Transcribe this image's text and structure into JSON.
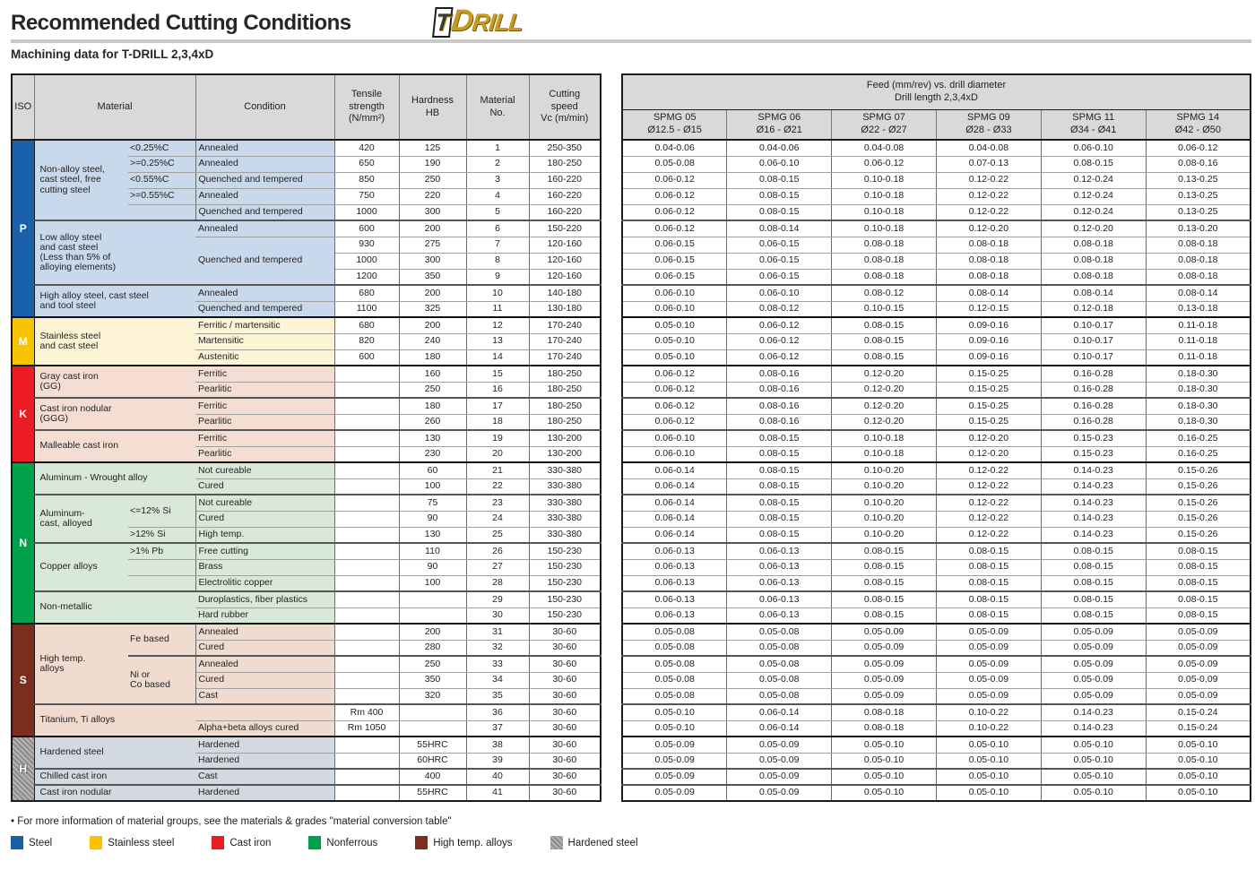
{
  "page": {
    "title": "Recommended Cutting Conditions",
    "subtitle": "Machining data for T-DRILL 2,3,4xD",
    "logo": {
      "t": "T",
      "d": "D",
      "rill": "RILL"
    }
  },
  "left_table": {
    "headers": {
      "iso": "ISO",
      "material": "Material",
      "condition": "Condition",
      "tensile": "Tensile\nstrength\n(N/mm²)",
      "hardness": "Hardness\nHB",
      "mat_no": "Material\nNo.",
      "speed": "Cutting\nspeed\nVc (m/min)"
    },
    "rows": [
      {
        "iso": {
          "label": "P",
          "rows": 11,
          "bg": "#1a5fa9",
          "fg": "#ffffff"
        },
        "mat": {
          "label": "Non-alloy steel,\ncast steel, free\ncutting steel",
          "rows": 5
        },
        "sub": {
          "label": "<0.25%C"
        },
        "cond": "Annealed",
        "ts": "420",
        "hb": "125",
        "no": "1",
        "vc": "250-350",
        "band": "#c9d9ec"
      },
      {
        "sub": {
          "label": ">=0.25%C"
        },
        "cond": "Annealed",
        "ts": "650",
        "hb": "190",
        "no": "2",
        "vc": "180-250",
        "band": "#c9d9ec"
      },
      {
        "sub": {
          "label": "<0.55%C"
        },
        "cond": "Quenched and tempered",
        "ts": "850",
        "hb": "250",
        "no": "3",
        "vc": "160-220",
        "band": "#c9d9ec"
      },
      {
        "sub": {
          "label": ">=0.55%C"
        },
        "cond": "Annealed",
        "ts": "750",
        "hb": "220",
        "no": "4",
        "vc": "160-220",
        "band": "#c9d9ec"
      },
      {
        "sub": {
          "label": ""
        },
        "cond": "Quenched and tempered",
        "ts": "1000",
        "hb": "300",
        "no": "5",
        "vc": "160-220",
        "band": "#c9d9ec",
        "sep": "group"
      },
      {
        "mat": {
          "label": "Low alloy steel\nand cast steel\n(Less than 5% of\nalloying elements)",
          "rows": 4,
          "cols": 2
        },
        "cond": "Annealed",
        "ts": "600",
        "hb": "200",
        "no": "6",
        "vc": "150-220",
        "band": "#c9d9ec"
      },
      {
        "cond": "Quenched and tempered",
        "condRows": 3,
        "ts": "930",
        "hb": "275",
        "no": "7",
        "vc": "120-160",
        "band": "#c9d9ec"
      },
      {
        "ts": "1000",
        "hb": "300",
        "no": "8",
        "vc": "120-160",
        "band": "#c9d9ec"
      },
      {
        "ts": "1200",
        "hb": "350",
        "no": "9",
        "vc": "120-160",
        "band": "#c9d9ec",
        "sep": "group"
      },
      {
        "mat": {
          "label": "High alloy steel, cast steel\nand tool steel",
          "rows": 2,
          "cols": 2
        },
        "cond": "Annealed",
        "ts": "680",
        "hb": "200",
        "no": "10",
        "vc": "140-180",
        "band": "#c9d9ec"
      },
      {
        "cond": "Quenched and tempered",
        "ts": "1100",
        "hb": "325",
        "no": "11",
        "vc": "130-180",
        "band": "#c9d9ec",
        "sep": "section"
      },
      {
        "iso": {
          "label": "M",
          "rows": 3,
          "bg": "#f8c300",
          "fg": "#ffffff"
        },
        "mat": {
          "label": "Stainless steel\nand cast steel",
          "rows": 3,
          "cols": 2
        },
        "cond": "Ferritic / martensitic",
        "ts": "680",
        "hb": "200",
        "no": "12",
        "vc": "170-240",
        "band": "#fdf3d5"
      },
      {
        "cond": "Martensitic",
        "ts": "820",
        "hb": "240",
        "no": "13",
        "vc": "170-240",
        "band": "#fdf3d5"
      },
      {
        "cond": "Austenitic",
        "ts": "600",
        "hb": "180",
        "no": "14",
        "vc": "170-240",
        "band": "#fdf3d5",
        "sep": "section"
      },
      {
        "iso": {
          "label": "K",
          "rows": 6,
          "bg": "#ed1c24",
          "fg": "#ffffff"
        },
        "mat": {
          "label": "Gray cast iron\n(GG)",
          "rows": 2,
          "cols": 2
        },
        "cond": "Ferritic",
        "ts": "",
        "hb": "160",
        "no": "15",
        "vc": "180-250",
        "band": "#f4ded1"
      },
      {
        "cond": "Pearlitic",
        "ts": "",
        "hb": "250",
        "no": "16",
        "vc": "180-250",
        "band": "#f4ded1",
        "sep": "group"
      },
      {
        "mat": {
          "label": "Cast iron nodular\n(GGG)",
          "rows": 2,
          "cols": 2
        },
        "cond": "Ferritic",
        "ts": "",
        "hb": "180",
        "no": "17",
        "vc": "180-250",
        "band": "#f4ded1"
      },
      {
        "cond": "Pearlitic",
        "ts": "",
        "hb": "260",
        "no": "18",
        "vc": "180-250",
        "band": "#f4ded1",
        "sep": "group"
      },
      {
        "mat": {
          "label": "Malleable cast iron",
          "rows": 2,
          "cols": 2
        },
        "cond": "Ferritic",
        "ts": "",
        "hb": "130",
        "no": "19",
        "vc": "130-200",
        "band": "#f4ded1"
      },
      {
        "cond": "Pearlitic",
        "ts": "",
        "hb": "230",
        "no": "20",
        "vc": "130-200",
        "band": "#f4ded1",
        "sep": "section"
      },
      {
        "iso": {
          "label": "N",
          "rows": 10,
          "bg": "#00a14b",
          "fg": "#ffffff"
        },
        "mat": {
          "label": "Aluminum - Wrought alloy",
          "rows": 2,
          "cols": 2
        },
        "cond": "Not cureable",
        "ts": "",
        "hb": "60",
        "no": "21",
        "vc": "330-380",
        "band": "#d9e9d8"
      },
      {
        "cond": "Cured",
        "ts": "",
        "hb": "100",
        "no": "22",
        "vc": "330-380",
        "band": "#d9e9d8",
        "sep": "group"
      },
      {
        "mat": {
          "label": "Aluminum-\ncast, alloyed",
          "rows": 3
        },
        "sub": {
          "label": "<=12% Si",
          "rows": 2
        },
        "cond": "Not cureable",
        "ts": "",
        "hb": "75",
        "no": "23",
        "vc": "330-380",
        "band": "#d9e9d8"
      },
      {
        "cond": "Cured",
        "ts": "",
        "hb": "90",
        "no": "24",
        "vc": "330-380",
        "band": "#d9e9d8"
      },
      {
        "sub": {
          "label": ">12% Si"
        },
        "cond": "High temp.",
        "ts": "",
        "hb": "130",
        "no": "25",
        "vc": "330-380",
        "band": "#d9e9d8",
        "sep": "group"
      },
      {
        "mat": {
          "label": "Copper alloys",
          "rows": 3
        },
        "sub": {
          "label": ">1% Pb"
        },
        "cond": "Free cutting",
        "ts": "",
        "hb": "110",
        "no": "26",
        "vc": "150-230",
        "band": "#d9e9d8"
      },
      {
        "sub": {
          "label": ""
        },
        "cond": "Brass",
        "ts": "",
        "hb": "90",
        "no": "27",
        "vc": "150-230",
        "band": "#d9e9d8"
      },
      {
        "sub": {
          "label": ""
        },
        "cond": "Electrolitic copper",
        "ts": "",
        "hb": "100",
        "no": "28",
        "vc": "150-230",
        "band": "#d9e9d8",
        "sep": "group"
      },
      {
        "mat": {
          "label": "Non-metallic",
          "rows": 2,
          "cols": 2
        },
        "cond": "Duroplastics, fiber plastics",
        "ts": "",
        "hb": "",
        "no": "29",
        "vc": "150-230",
        "band": "#d9e9d8"
      },
      {
        "cond": "Hard rubber",
        "ts": "",
        "hb": "",
        "no": "30",
        "vc": "150-230",
        "band": "#d9e9d8",
        "sep": "section"
      },
      {
        "iso": {
          "label": "S",
          "rows": 7,
          "bg": "#7b2e1d",
          "fg": "#ffffff"
        },
        "mat": {
          "label": "High temp.\nalloys",
          "rows": 5
        },
        "sub": {
          "label": "Fe based",
          "rows": 2
        },
        "cond": "Annealed",
        "ts": "",
        "hb": "200",
        "no": "31",
        "vc": "30-60",
        "band": "#f0dcce"
      },
      {
        "cond": "Cured",
        "ts": "",
        "hb": "280",
        "no": "32",
        "vc": "30-60",
        "band": "#f0dcce",
        "sep": "group"
      },
      {
        "sub": {
          "label": "Ni or\nCo based",
          "rows": 3
        },
        "cond": "Annealed",
        "ts": "",
        "hb": "250",
        "no": "33",
        "vc": "30-60",
        "band": "#f0dcce"
      },
      {
        "cond": "Cured",
        "ts": "",
        "hb": "350",
        "no": "34",
        "vc": "30-60",
        "band": "#f0dcce"
      },
      {
        "cond": "Cast",
        "ts": "",
        "hb": "320",
        "no": "35",
        "vc": "30-60",
        "band": "#f0dcce",
        "sep": "group"
      },
      {
        "mat": {
          "label": "Titanium, Ti alloys",
          "rows": 2,
          "cols": 2
        },
        "cond": "",
        "ts": "Rm 400",
        "hb": "",
        "no": "36",
        "vc": "30-60",
        "band": "#f0dcce"
      },
      {
        "cond": "Alpha+beta alloys cured",
        "ts": "Rm 1050",
        "hb": "",
        "no": "37",
        "vc": "30-60",
        "band": "#f0dcce",
        "sep": "section"
      },
      {
        "iso": {
          "label": "H",
          "rows": 4,
          "bg": "#8f8f8f",
          "fg": "#ffffff",
          "hatch": true
        },
        "mat": {
          "label": "Hardened steel",
          "rows": 2,
          "cols": 2
        },
        "cond": "Hardened",
        "ts": "",
        "hb": "55HRC",
        "no": "38",
        "vc": "30-60",
        "band": "#d3d9e0"
      },
      {
        "cond": "Hardened",
        "ts": "",
        "hb": "60HRC",
        "no": "39",
        "vc": "30-60",
        "band": "#d3d9e0",
        "sep": "group"
      },
      {
        "mat": {
          "label": "Chilled cast iron",
          "cols": 2
        },
        "cond": "Cast",
        "ts": "",
        "hb": "400",
        "no": "40",
        "vc": "30-60",
        "band": "#d3d9e0",
        "sep": "group"
      },
      {
        "mat": {
          "label": "Cast iron nodular",
          "cols": 2
        },
        "cond": "Hardened",
        "ts": "",
        "hb": "55HRC",
        "no": "41",
        "vc": "30-60",
        "band": "#d3d9e0"
      }
    ]
  },
  "right_table": {
    "group_header": "Feed (mm/rev) vs. drill diameter\nDrill length 2,3,4xD",
    "columns": [
      "SPMG 05\nØ12.5 - Ø15",
      "SPMG 06\nØ16 - Ø21",
      "SPMG 07\nØ22 - Ø27",
      "SPMG 09\nØ28 - Ø33",
      "SPMG 11\nØ34 - Ø41",
      "SPMG 14\nØ42 - Ø50"
    ],
    "rows": [
      [
        "0.04-0.06",
        "0.04-0.06",
        "0.04-0.08",
        "0.04-0.08",
        "0.06-0.10",
        "0.06-0.12"
      ],
      [
        "0.05-0.08",
        "0.06-0.10",
        "0.06-0.12",
        "0.07-0.13",
        "0.08-0.15",
        "0.08-0.16"
      ],
      [
        "0.06-0.12",
        "0.08-0.15",
        "0.10-0.18",
        "0.12-0.22",
        "0.12-0.24",
        "0.13-0.25"
      ],
      [
        "0.06-0.12",
        "0.08-0.15",
        "0.10-0.18",
        "0.12-0.22",
        "0.12-0.24",
        "0.13-0.25"
      ],
      [
        "0.06-0.12",
        "0.08-0.15",
        "0.10-0.18",
        "0.12-0.22",
        "0.12-0.24",
        "0.13-0.25"
      ],
      [
        "0.06-0.12",
        "0.08-0.14",
        "0.10-0.18",
        "0.12-0.20",
        "0.12-0.20",
        "0.13-0.20"
      ],
      [
        "0.06-0.15",
        "0.06-0.15",
        "0.08-0.18",
        "0.08-0.18",
        "0.08-0.18",
        "0.08-0.18"
      ],
      [
        "0.06-0.15",
        "0.06-0.15",
        "0.08-0.18",
        "0.08-0.18",
        "0.08-0.18",
        "0.08-0.18"
      ],
      [
        "0.06-0.15",
        "0.06-0.15",
        "0.08-0.18",
        "0.08-0.18",
        "0.08-0.18",
        "0.08-0.18"
      ],
      [
        "0.06-0.10",
        "0.06-0.10",
        "0.08-0.12",
        "0.08-0.14",
        "0.08-0.14",
        "0.08-0.14"
      ],
      [
        "0.06-0.10",
        "0.08-0.12",
        "0.10-0.15",
        "0.12-0.15",
        "0.12-0.18",
        "0.13-0.18"
      ],
      [
        "0.05-0.10",
        "0.06-0.12",
        "0.08-0.15",
        "0.09-0.16",
        "0.10-0.17",
        "0.11-0.18"
      ],
      [
        "0.05-0.10",
        "0.06-0.12",
        "0.08-0.15",
        "0.09-0.16",
        "0.10-0.17",
        "0.11-0.18"
      ],
      [
        "0.05-0.10",
        "0.06-0.12",
        "0.08-0.15",
        "0.09-0.16",
        "0.10-0.17",
        "0.11-0.18"
      ],
      [
        "0.06-0.12",
        "0.08-0.16",
        "0.12-0.20",
        "0.15-0.25",
        "0.16-0.28",
        "0.18-0.30"
      ],
      [
        "0.06-0.12",
        "0.08-0.16",
        "0.12-0.20",
        "0.15-0.25",
        "0.16-0.28",
        "0.18-0.30"
      ],
      [
        "0.06-0.12",
        "0.08-0.16",
        "0.12-0.20",
        "0.15-0.25",
        "0.16-0.28",
        "0.18-0.30"
      ],
      [
        "0.06-0.12",
        "0.08-0.16",
        "0.12-0.20",
        "0.15-0.25",
        "0.16-0.28",
        "0.18-0.30"
      ],
      [
        "0.06-0.10",
        "0.08-0.15",
        "0.10-0.18",
        "0.12-0.20",
        "0.15-0.23",
        "0.16-0.25"
      ],
      [
        "0.06-0.10",
        "0.08-0.15",
        "0.10-0.18",
        "0.12-0.20",
        "0.15-0.23",
        "0.16-0.25"
      ],
      [
        "0.06-0.14",
        "0.08-0.15",
        "0.10-0.20",
        "0.12-0.22",
        "0.14-0.23",
        "0.15-0.26"
      ],
      [
        "0.06-0.14",
        "0.08-0.15",
        "0.10-0.20",
        "0.12-0.22",
        "0.14-0.23",
        "0.15-0.26"
      ],
      [
        "0.06-0.14",
        "0.08-0.15",
        "0.10-0.20",
        "0.12-0.22",
        "0.14-0.23",
        "0.15-0.26"
      ],
      [
        "0.06-0.14",
        "0.08-0.15",
        "0.10-0.20",
        "0.12-0.22",
        "0.14-0.23",
        "0.15-0.26"
      ],
      [
        "0.06-0.14",
        "0.08-0.15",
        "0.10-0.20",
        "0.12-0.22",
        "0.14-0.23",
        "0.15-0.26"
      ],
      [
        "0.06-0.13",
        "0.06-0.13",
        "0.08-0.15",
        "0.08-0.15",
        "0.08-0.15",
        "0.08-0.15"
      ],
      [
        "0.06-0.13",
        "0.06-0.13",
        "0.08-0.15",
        "0.08-0.15",
        "0.08-0.15",
        "0.08-0.15"
      ],
      [
        "0.06-0.13",
        "0.06-0.13",
        "0.08-0.15",
        "0.08-0.15",
        "0.08-0.15",
        "0.08-0.15"
      ],
      [
        "0.06-0.13",
        "0.06-0.13",
        "0.08-0.15",
        "0.08-0.15",
        "0.08-0.15",
        "0.08-0.15"
      ],
      [
        "0.06-0.13",
        "0.06-0.13",
        "0.08-0.15",
        "0.08-0.15",
        "0.08-0.15",
        "0.08-0.15"
      ],
      [
        "0.05-0.08",
        "0.05-0.08",
        "0.05-0.09",
        "0.05-0.09",
        "0.05-0.09",
        "0.05-0.09"
      ],
      [
        "0.05-0.08",
        "0.05-0.08",
        "0.05-0.09",
        "0.05-0.09",
        "0.05-0.09",
        "0.05-0.09"
      ],
      [
        "0.05-0.08",
        "0.05-0.08",
        "0.05-0.09",
        "0.05-0.09",
        "0.05-0.09",
        "0.05-0.09"
      ],
      [
        "0.05-0.08",
        "0.05-0.08",
        "0.05-0.09",
        "0.05-0.09",
        "0.05-0.09",
        "0.05-0.09"
      ],
      [
        "0.05-0.08",
        "0.05-0.08",
        "0.05-0.09",
        "0.05-0.09",
        "0.05-0.09",
        "0.05-0.09"
      ],
      [
        "0.05-0.10",
        "0.06-0.14",
        "0.08-0.18",
        "0.10-0.22",
        "0.14-0.23",
        "0.15-0.24"
      ],
      [
        "0.05-0.10",
        "0.06-0.14",
        "0.08-0.18",
        "0.10-0.22",
        "0.14-0.23",
        "0.15-0.24"
      ],
      [
        "0.05-0.09",
        "0.05-0.09",
        "0.05-0.10",
        "0.05-0.10",
        "0.05-0.10",
        "0.05-0.10"
      ],
      [
        "0.05-0.09",
        "0.05-0.09",
        "0.05-0.10",
        "0.05-0.10",
        "0.05-0.10",
        "0.05-0.10"
      ],
      [
        "0.05-0.09",
        "0.05-0.09",
        "0.05-0.10",
        "0.05-0.10",
        "0.05-0.10",
        "0.05-0.10"
      ],
      [
        "0.05-0.09",
        "0.05-0.09",
        "0.05-0.10",
        "0.05-0.10",
        "0.05-0.10",
        "0.05-0.10"
      ]
    ]
  },
  "footer": {
    "note": "• For more information of material groups, see the materials & grades \"material conversion table\"",
    "legend": [
      {
        "label": "Steel",
        "color": "#1a5fa9"
      },
      {
        "label": "Stainless steel",
        "color": "#f8c300"
      },
      {
        "label": "Cast iron",
        "color": "#ed1c24"
      },
      {
        "label": "Nonferrous",
        "color": "#00a14b"
      },
      {
        "label": "High temp. alloys",
        "color": "#7b2e1d"
      },
      {
        "label": "Hardened steel",
        "color": "#8f8f8f",
        "hatch": true
      }
    ]
  }
}
